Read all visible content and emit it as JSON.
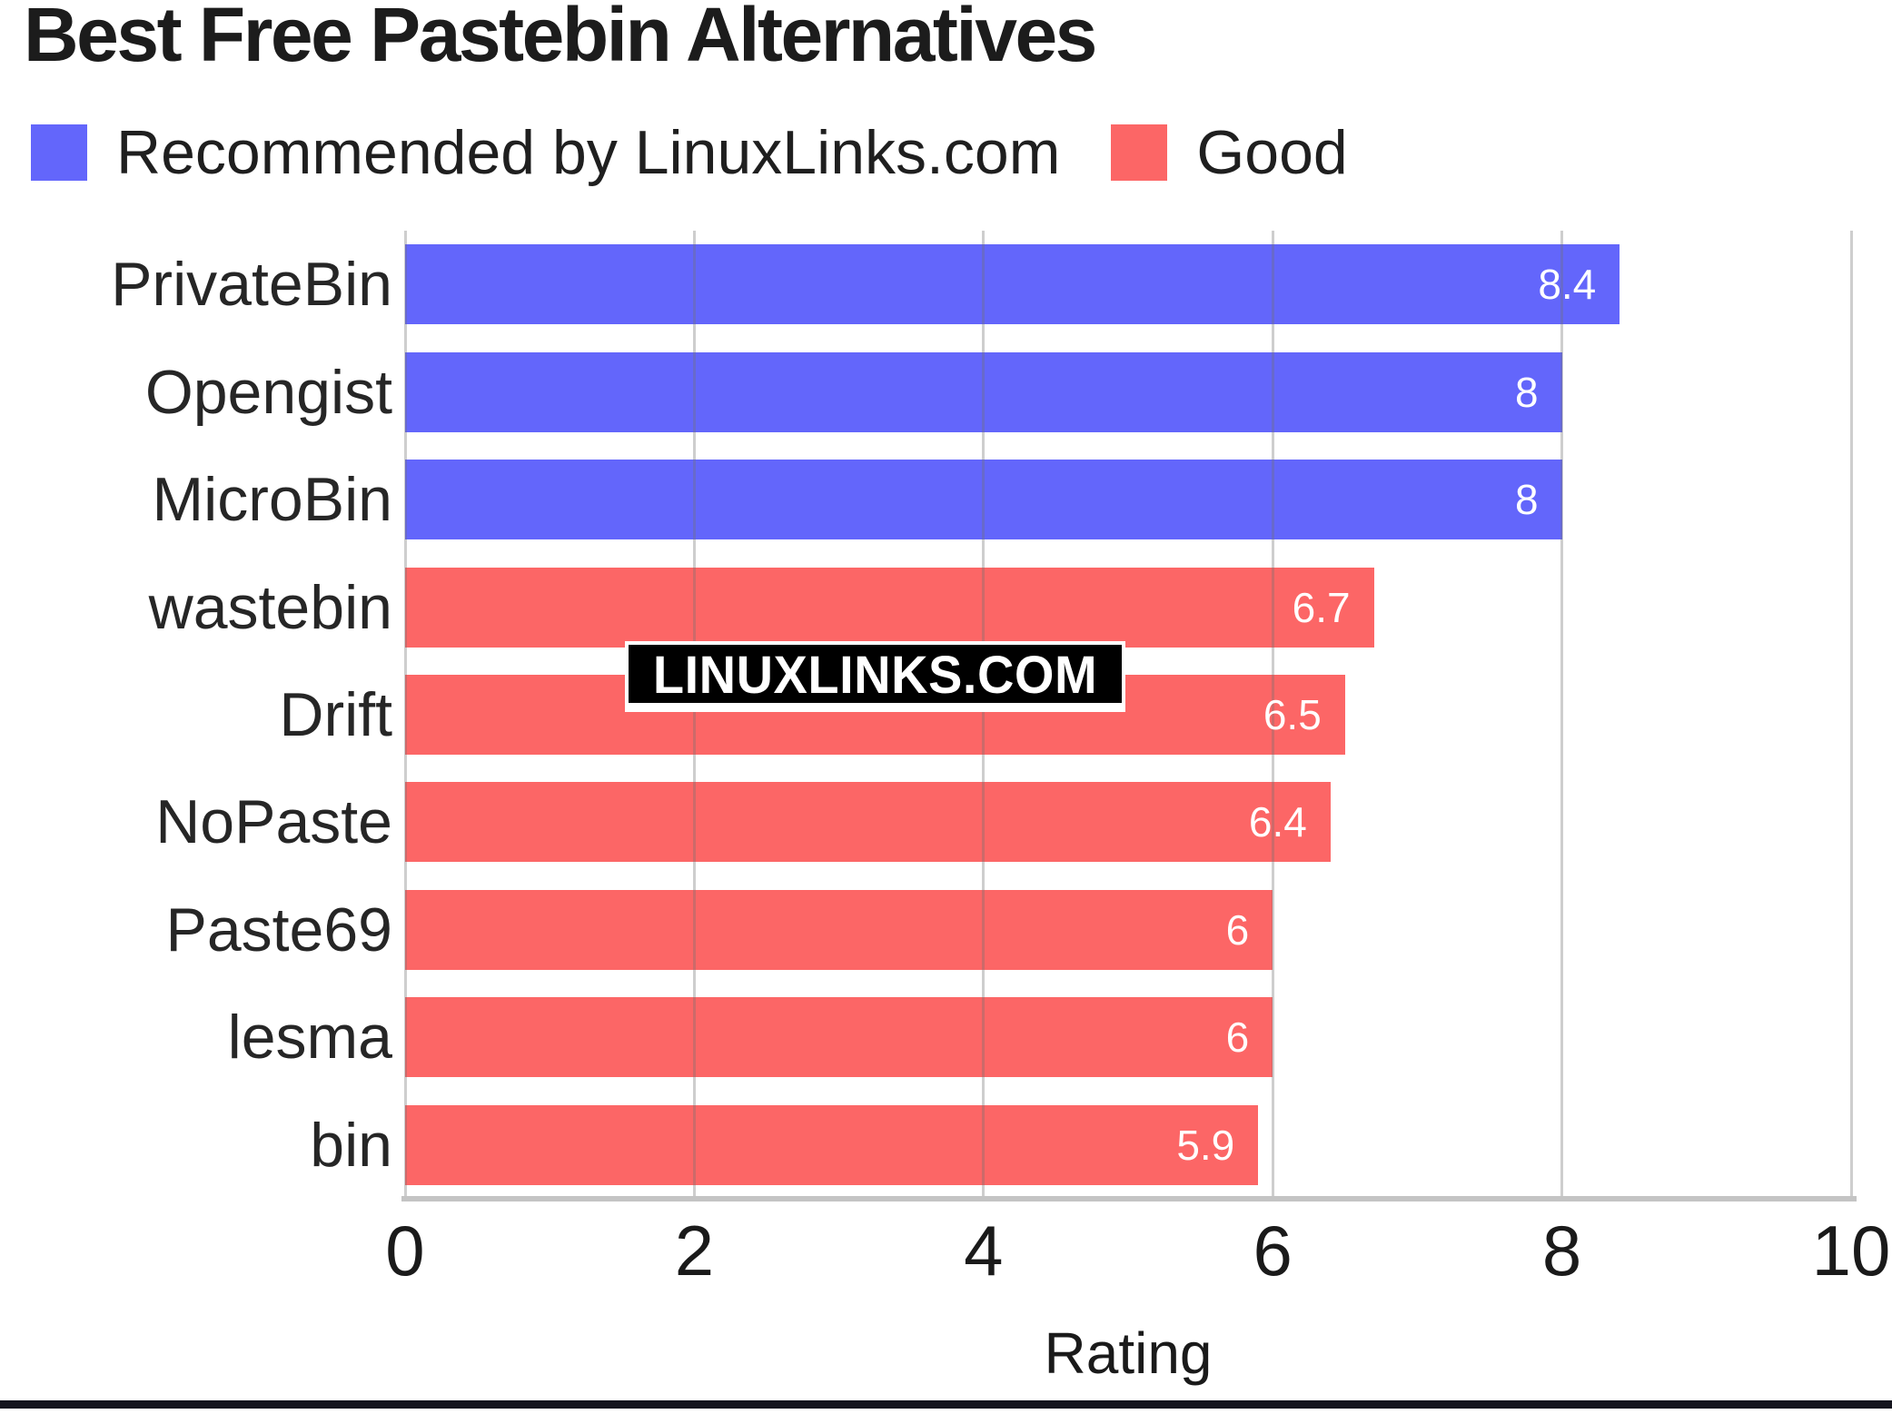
{
  "page": {
    "title": "Best Free Pastebin Alternatives",
    "watermark": "LINUXLINKS.COM"
  },
  "legend": {
    "items": [
      {
        "label": "Recommended by LinuxLinks.com",
        "color": "#6366fb"
      },
      {
        "label": "Good",
        "color": "#fc6666"
      }
    ]
  },
  "chart_data": {
    "type": "bar",
    "orientation": "horizontal",
    "title": "Best Free Pastebin Alternatives",
    "xlabel": "Rating",
    "xlim": [
      0,
      10
    ],
    "xticks": [
      0,
      2,
      4,
      6,
      8,
      10
    ],
    "grid": true,
    "legend_position": "top",
    "categories": [
      "PrivateBin",
      "Opengist",
      "MicroBin",
      "wastebin",
      "Drift",
      "NoPaste",
      "Paste69",
      "lesma",
      "bin"
    ],
    "values": [
      8.4,
      8,
      8,
      6.7,
      6.5,
      6.4,
      6,
      6,
      5.9
    ],
    "value_labels": [
      "8.4",
      "8",
      "8",
      "6.7",
      "6.5",
      "6.4",
      "6",
      "6",
      "5.9"
    ],
    "bar_groups": [
      0,
      0,
      0,
      1,
      1,
      1,
      1,
      1,
      1
    ],
    "series": [
      {
        "name": "Recommended by LinuxLinks.com",
        "color": "#6366fb",
        "categories": [
          "PrivateBin",
          "Opengist",
          "MicroBin"
        ],
        "values": [
          8.4,
          8,
          8
        ]
      },
      {
        "name": "Good",
        "color": "#fc6666",
        "categories": [
          "wastebin",
          "Drift",
          "NoPaste",
          "Paste69",
          "lesma",
          "bin"
        ],
        "values": [
          6.7,
          6.5,
          6.4,
          6,
          6,
          5.9
        ]
      }
    ]
  },
  "colors": {
    "recommended_bar": "#6366fb",
    "good_bar": "#fc6666",
    "gridline": "rgba(115,115,115,0.35)",
    "axis_baseline": "#c4c4c4",
    "title_text": "#1c1c1c",
    "category_text": "#262626",
    "value_text": "#ffffff",
    "watermark_bg": "#000000",
    "watermark_text": "#ffffff",
    "bottom_border": "#15151e"
  }
}
